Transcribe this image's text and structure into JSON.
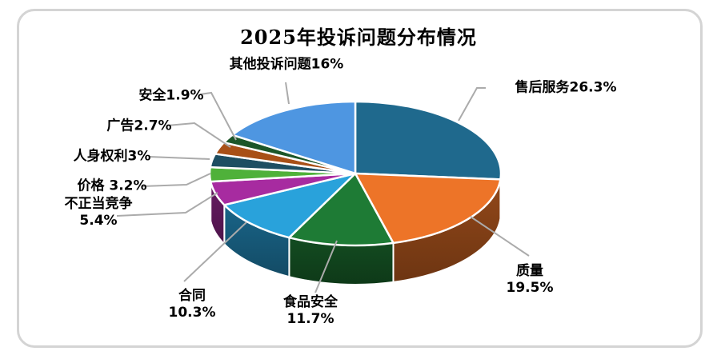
{
  "card": {
    "background": "#ffffff",
    "border_color": "#d4d4d4"
  },
  "chart_data": {
    "type": "pie",
    "style": "3d",
    "title": "2025年投诉问题分布情况",
    "direction": "clockwise",
    "start_angle_deg": 0,
    "value_unit": "%",
    "total": 100,
    "leader_line_color": "#ABABAB",
    "label_text_color": "#000000",
    "legend": "none",
    "slices": [
      {
        "name": "售后服务",
        "value": 26.3,
        "label_lines": [
          "售后服务26.3%"
        ],
        "color": "#1F698D"
      },
      {
        "name": "质量",
        "value": 19.5,
        "label_lines": [
          "质量",
          "19.5%"
        ],
        "color": "#ED7428"
      },
      {
        "name": "食品安全",
        "value": 11.7,
        "label_lines": [
          "食品安全",
          "11.7%"
        ],
        "color": "#1E7B35"
      },
      {
        "name": "合同",
        "value": 10.3,
        "label_lines": [
          "合同",
          "10.3%"
        ],
        "color": "#29A2DB"
      },
      {
        "name": "不正当竞争",
        "value": 5.4,
        "label_lines": [
          "不正当竞争",
          "5.4%"
        ],
        "color": "#A72BA0"
      },
      {
        "name": "价格",
        "value": 3.2,
        "label_lines": [
          "价格 3.2%"
        ],
        "color": "#4FB13A"
      },
      {
        "name": "人身权利",
        "value": 3,
        "label_lines": [
          "人身权利3%"
        ],
        "color": "#1D4E62"
      },
      {
        "name": "广告",
        "value": 2.7,
        "label_lines": [
          "广告2.7%"
        ],
        "color": "#A85017"
      },
      {
        "name": "安全",
        "value": 1.9,
        "label_lines": [
          "安全1.9%"
        ],
        "color": "#1C5629"
      },
      {
        "name": "其他投诉问题",
        "value": 16,
        "label_lines": [
          "其他投诉问题16%"
        ],
        "color": "#4E96E1"
      }
    ]
  }
}
